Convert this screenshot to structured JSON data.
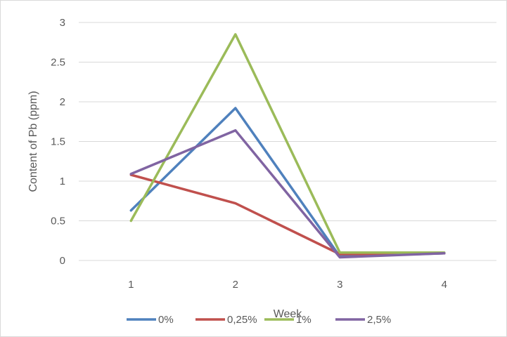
{
  "chart_data": {
    "type": "line",
    "title": "",
    "xlabel": "Week",
    "ylabel": "Content of Pb (ppm)",
    "categories": [
      "1",
      "2",
      "3",
      "4"
    ],
    "ylim": [
      0,
      3
    ],
    "yticks": [
      "0",
      "0.5",
      "1",
      "1.5",
      "2",
      "2.5",
      "3"
    ],
    "grid": true,
    "legend_position": "bottom",
    "series": [
      {
        "name": "0%",
        "color": "#4F81BD",
        "values": [
          0.63,
          1.92,
          0.05,
          0.09
        ]
      },
      {
        "name": "0,25%",
        "color": "#C0504D",
        "values": [
          1.08,
          0.72,
          0.08,
          0.09
        ]
      },
      {
        "name": "1%",
        "color": "#9BBB59",
        "values": [
          0.5,
          2.85,
          0.1,
          0.1
        ]
      },
      {
        "name": "2,5%",
        "color": "#8064A2",
        "values": [
          1.09,
          1.64,
          0.04,
          0.09
        ]
      }
    ]
  }
}
